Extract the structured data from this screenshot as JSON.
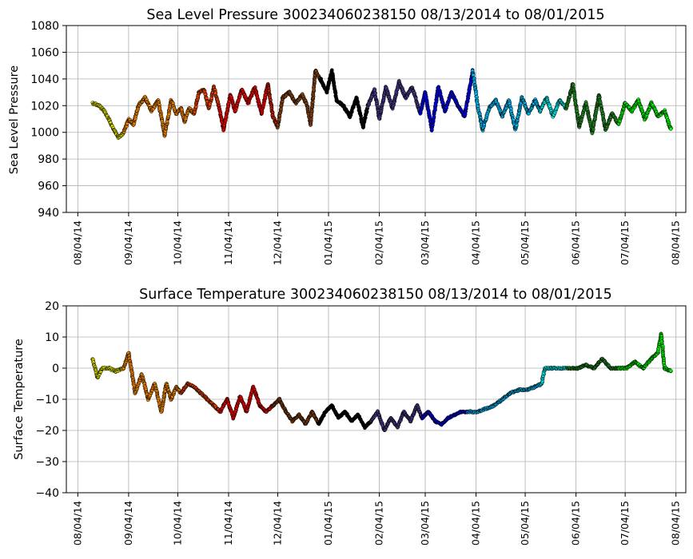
{
  "chart_data": [
    {
      "type": "scatter",
      "title": "Sea Level Pressure 300234060238150  08/13/2014 to 08/01/2015",
      "xlabel": "",
      "ylabel": "Sea Level Pressure",
      "ylim": [
        940,
        1080
      ],
      "yticks": [
        940,
        960,
        980,
        1000,
        1020,
        1040,
        1060,
        1080
      ],
      "xlim": [
        "2014-07-28",
        "2015-08-10"
      ],
      "xticks": [
        "08/04/14",
        "09/04/14",
        "10/04/14",
        "11/04/14",
        "12/04/14",
        "01/04/15",
        "02/04/15",
        "03/04/15",
        "04/04/15",
        "05/04/15",
        "06/04/15",
        "07/04/15",
        "08/04/15"
      ],
      "grid": true,
      "markers": "filled circles with black edge, color changes by month",
      "series": [
        {
          "color": "#ffff00",
          "x": [
            "2014-08-13",
            "2014-08-17",
            "2014-08-20",
            "2014-08-23",
            "2014-08-26",
            "2014-08-29",
            "2014-09-01"
          ],
          "values": [
            1022,
            1020,
            1016,
            1010,
            1002,
            996,
            1000
          ]
        },
        {
          "color": "#ff8c00",
          "x": [
            "2014-09-01",
            "2014-09-04",
            "2014-09-07",
            "2014-09-10",
            "2014-09-14",
            "2014-09-18",
            "2014-09-22",
            "2014-09-26",
            "2014-09-30",
            "2014-10-03",
            "2014-10-06",
            "2014-10-08",
            "2014-10-11",
            "2014-10-14"
          ],
          "values": [
            1000,
            1010,
            1006,
            1020,
            1026,
            1016,
            1024,
            998,
            1024,
            1014,
            1018,
            1008,
            1018,
            1014
          ]
        },
        {
          "color": "#ff4500",
          "x": [
            "2014-10-14",
            "2014-10-17",
            "2014-10-20",
            "2014-10-23",
            "2014-10-26",
            "2014-10-29"
          ],
          "values": [
            1014,
            1030,
            1032,
            1018,
            1034,
            1020
          ]
        },
        {
          "color": "#ff0000",
          "x": [
            "2014-10-29",
            "2014-11-01",
            "2014-11-05",
            "2014-11-08",
            "2014-11-12",
            "2014-11-16",
            "2014-11-20",
            "2014-11-24",
            "2014-11-28"
          ],
          "values": [
            1020,
            1002,
            1028,
            1016,
            1032,
            1022,
            1034,
            1014,
            1036
          ]
        },
        {
          "color": "#cc2200",
          "x": [
            "2014-11-28",
            "2014-12-01",
            "2014-12-04"
          ],
          "values": [
            1036,
            1012,
            1004
          ]
        },
        {
          "color": "#8b4513",
          "x": [
            "2014-12-04",
            "2014-12-07",
            "2014-12-11",
            "2014-12-15",
            "2014-12-19",
            "2014-12-22",
            "2014-12-24",
            "2014-12-27",
            "2014-12-30"
          ],
          "values": [
            1004,
            1026,
            1030,
            1022,
            1028,
            1020,
            1006,
            1046,
            1040
          ]
        },
        {
          "color": "#000000",
          "x": [
            "2014-12-30",
            "2015-01-03",
            "2015-01-06",
            "2015-01-09",
            "2015-01-13",
            "2015-01-17",
            "2015-01-21",
            "2015-01-25",
            "2015-01-28"
          ],
          "values": [
            1040,
            1030,
            1046,
            1024,
            1020,
            1012,
            1026,
            1004,
            1020
          ]
        },
        {
          "color": "#483d8b",
          "x": [
            "2015-01-28",
            "2015-02-01",
            "2015-02-04",
            "2015-02-08",
            "2015-02-12",
            "2015-02-16",
            "2015-02-20",
            "2015-02-24",
            "2015-03-01"
          ],
          "values": [
            1020,
            1032,
            1010,
            1034,
            1018,
            1038,
            1026,
            1034,
            1014
          ]
        },
        {
          "color": "#0000ff",
          "x": [
            "2015-03-01",
            "2015-03-04",
            "2015-03-08",
            "2015-03-12",
            "2015-03-16",
            "2015-03-20",
            "2015-03-24",
            "2015-03-28",
            "2015-04-02"
          ],
          "values": [
            1014,
            1030,
            1002,
            1034,
            1016,
            1030,
            1020,
            1012,
            1046
          ]
        },
        {
          "color": "#00bfff",
          "x": [
            "2015-04-02",
            "2015-04-05",
            "2015-04-08",
            "2015-04-12",
            "2015-04-16",
            "2015-04-20",
            "2015-04-24",
            "2015-04-28",
            "2015-05-02",
            "2015-05-06",
            "2015-05-10",
            "2015-05-13"
          ],
          "values": [
            1046,
            1020,
            1002,
            1018,
            1024,
            1012,
            1024,
            1002,
            1026,
            1014,
            1024,
            1016
          ]
        },
        {
          "color": "#00ffff",
          "x": [
            "2015-05-13",
            "2015-05-17",
            "2015-05-21",
            "2015-05-25",
            "2015-05-29"
          ],
          "values": [
            1016,
            1026,
            1012,
            1024,
            1018
          ]
        },
        {
          "color": "#228b22",
          "x": [
            "2015-05-29",
            "2015-06-02",
            "2015-06-06",
            "2015-06-10",
            "2015-06-14",
            "2015-06-18",
            "2015-06-22",
            "2015-06-26",
            "2015-06-30"
          ],
          "values": [
            1018,
            1036,
            1004,
            1022,
            1000,
            1028,
            1002,
            1014,
            1006
          ]
        },
        {
          "color": "#00ff00",
          "x": [
            "2015-06-30",
            "2015-07-04",
            "2015-07-08",
            "2015-07-12",
            "2015-07-16",
            "2015-07-20",
            "2015-07-24",
            "2015-07-28",
            "2015-08-01"
          ],
          "values": [
            1006,
            1022,
            1016,
            1024,
            1010,
            1022,
            1012,
            1016,
            1002
          ]
        }
      ]
    },
    {
      "type": "scatter",
      "title": "Surface Temperature 300234060238150  08/13/2014 to 08/01/2015",
      "xlabel": "",
      "ylabel": "Surface Temperature",
      "ylim": [
        -40,
        20
      ],
      "yticks": [
        -40,
        -30,
        -20,
        -10,
        0,
        10,
        20
      ],
      "xlim": [
        "2014-07-28",
        "2015-08-10"
      ],
      "xticks": [
        "08/04/14",
        "09/04/14",
        "10/04/14",
        "11/04/14",
        "12/04/14",
        "01/04/15",
        "02/04/15",
        "03/04/15",
        "04/04/15",
        "05/04/15",
        "06/04/15",
        "07/04/15",
        "08/04/15"
      ],
      "grid": true,
      "markers": "filled circles with black edge, color changes by month",
      "series": [
        {
          "color": "#ffff00",
          "x": [
            "2014-08-13",
            "2014-08-16",
            "2014-08-19",
            "2014-08-23",
            "2014-08-27",
            "2014-09-01"
          ],
          "values": [
            3,
            -3,
            0,
            0,
            -1,
            0
          ]
        },
        {
          "color": "#ff8c00",
          "x": [
            "2014-09-01",
            "2014-09-04",
            "2014-09-08",
            "2014-09-12",
            "2014-09-16",
            "2014-09-20",
            "2014-09-24",
            "2014-09-27",
            "2014-09-30",
            "2014-10-03",
            "2014-10-06"
          ],
          "values": [
            0,
            5,
            -8,
            -2,
            -10,
            -5,
            -14,
            -5,
            -10,
            -6,
            -8
          ]
        },
        {
          "color": "#ff4500",
          "x": [
            "2014-10-06",
            "2014-10-10",
            "2014-10-14",
            "2014-10-18",
            "2014-10-22",
            "2014-10-26",
            "2014-10-30"
          ],
          "values": [
            -8,
            -5,
            -6,
            -8,
            -10,
            -12,
            -14
          ]
        },
        {
          "color": "#ff0000",
          "x": [
            "2014-10-30",
            "2014-11-03",
            "2014-11-07",
            "2014-11-11",
            "2014-11-15",
            "2014-11-19",
            "2014-11-23",
            "2014-11-27",
            "2014-12-01"
          ],
          "values": [
            -14,
            -10,
            -16,
            -9,
            -14,
            -6,
            -12,
            -14,
            -12
          ]
        },
        {
          "color": "#8b4513",
          "x": [
            "2014-12-01",
            "2014-12-05",
            "2014-12-09",
            "2014-12-13",
            "2014-12-17",
            "2014-12-21",
            "2014-12-25",
            "2014-12-29"
          ],
          "values": [
            -12,
            -10,
            -14,
            -17,
            -15,
            -18,
            -14,
            -18
          ]
        },
        {
          "color": "#000000",
          "x": [
            "2014-12-29",
            "2015-01-02",
            "2015-01-06",
            "2015-01-10",
            "2015-01-14",
            "2015-01-18",
            "2015-01-22",
            "2015-01-26",
            "2015-01-30"
          ],
          "values": [
            -18,
            -14,
            -12,
            -16,
            -14,
            -17,
            -15,
            -19,
            -17
          ]
        },
        {
          "color": "#483d8b",
          "x": [
            "2015-01-30",
            "2015-02-03",
            "2015-02-07",
            "2015-02-11",
            "2015-02-15",
            "2015-02-19",
            "2015-02-23",
            "2015-02-27",
            "2015-03-02"
          ],
          "values": [
            -17,
            -14,
            -20,
            -16,
            -19,
            -14,
            -17,
            -12,
            -16
          ]
        },
        {
          "color": "#0000ff",
          "x": [
            "2015-03-02",
            "2015-03-06",
            "2015-03-10",
            "2015-03-14",
            "2015-03-18",
            "2015-03-22",
            "2015-03-26",
            "2015-03-30"
          ],
          "values": [
            -16,
            -14,
            -17,
            -18,
            -16,
            -15,
            -14,
            -14
          ]
        },
        {
          "color": "#00bfff",
          "x": [
            "2015-03-30",
            "2015-04-05",
            "2015-04-10",
            "2015-04-15",
            "2015-04-20",
            "2015-04-25",
            "2015-04-30",
            "2015-05-05",
            "2015-05-10",
            "2015-05-14"
          ],
          "values": [
            -14,
            -14,
            -13,
            -12,
            -10,
            -8,
            -7,
            -7,
            -6,
            -5
          ]
        },
        {
          "color": "#00ffff",
          "x": [
            "2015-05-14",
            "2015-05-16",
            "2015-05-20",
            "2015-05-25",
            "2015-05-30"
          ],
          "values": [
            -5,
            0,
            0,
            0,
            0
          ]
        },
        {
          "color": "#228b22",
          "x": [
            "2015-05-30",
            "2015-06-05",
            "2015-06-10",
            "2015-06-15",
            "2015-06-20",
            "2015-06-25",
            "2015-06-30"
          ],
          "values": [
            0,
            0,
            1,
            0,
            3,
            0,
            0
          ]
        },
        {
          "color": "#00ff00",
          "x": [
            "2015-06-30",
            "2015-07-05",
            "2015-07-10",
            "2015-07-15",
            "2015-07-20",
            "2015-07-24",
            "2015-07-26",
            "2015-07-28",
            "2015-08-01"
          ],
          "values": [
            0,
            0,
            2,
            0,
            3,
            5,
            11,
            0,
            -1
          ]
        }
      ]
    }
  ]
}
